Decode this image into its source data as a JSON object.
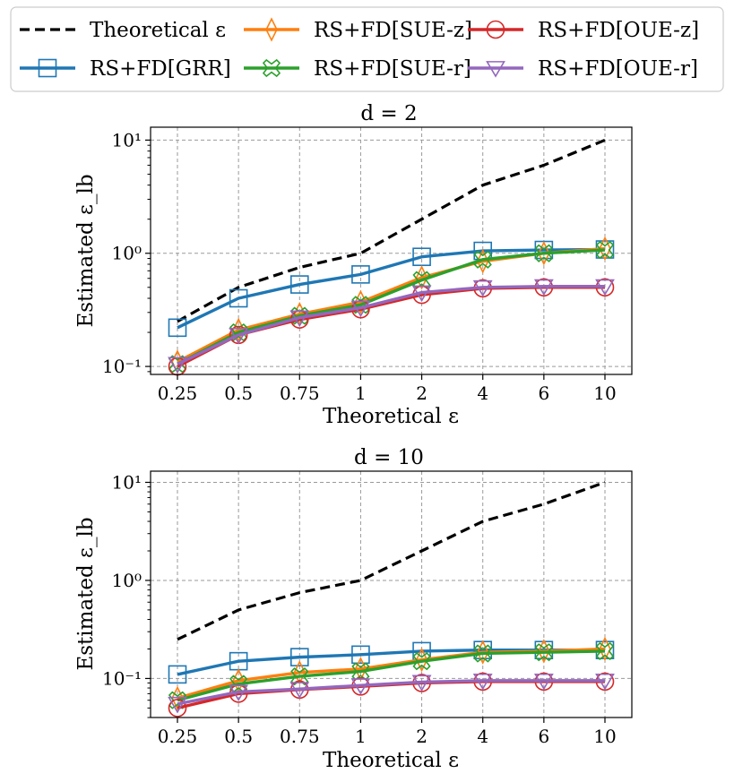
{
  "legend": {
    "entries": [
      {
        "label": "Theoretical ε",
        "color": "#000000",
        "marker": "none",
        "dashed": true
      },
      {
        "label": "RS+FD[SUE-z]",
        "color": "#ff7f0e",
        "marker": "diamond"
      },
      {
        "label": "RS+FD[OUE-z]",
        "color": "#d62728",
        "marker": "circle"
      },
      {
        "label": "RS+FD[GRR]",
        "color": "#1f77b4",
        "marker": "square"
      },
      {
        "label": "RS+FD[SUE-r]",
        "color": "#2ca02c",
        "marker": "x-cross"
      },
      {
        "label": "RS+FD[OUE-r]",
        "color": "#9467bd",
        "marker": "triangle-down"
      }
    ]
  },
  "chart_data": [
    {
      "type": "line",
      "title": "d = 2",
      "xlabel": "Theoretical ε",
      "ylabel": "Estimated ε_lb",
      "yscale": "log",
      "ylim": [
        0.085,
        13
      ],
      "yticks": [
        {
          "value": 0.1,
          "label": "10⁻¹"
        },
        {
          "value": 1,
          "label": "10⁰"
        },
        {
          "value": 10,
          "label": "10¹"
        }
      ],
      "grid": true,
      "categories": [
        "0.25",
        "0.5",
        "0.75",
        "1",
        "2",
        "4",
        "6",
        "10"
      ],
      "series": [
        {
          "name": "Theoretical ε",
          "color": "#000000",
          "marker": "none",
          "dashed": true,
          "values": [
            0.25,
            0.5,
            0.75,
            1,
            2,
            4,
            6,
            10
          ]
        },
        {
          "name": "RS+FD[GRR]",
          "color": "#1f77b4",
          "marker": "square",
          "values": [
            0.22,
            0.4,
            0.53,
            0.65,
            0.93,
            1.05,
            1.07,
            1.08
          ]
        },
        {
          "name": "RS+FD[SUE-z]",
          "color": "#ff7f0e",
          "marker": "diamond",
          "values": [
            0.11,
            0.21,
            0.29,
            0.37,
            0.61,
            0.85,
            1.0,
            1.1
          ]
        },
        {
          "name": "RS+FD[SUE-r]",
          "color": "#2ca02c",
          "marker": "x-cross",
          "values": [
            0.105,
            0.2,
            0.28,
            0.35,
            0.58,
            0.88,
            1.0,
            1.07
          ]
        },
        {
          "name": "RS+FD[OUE-z]",
          "color": "#d62728",
          "marker": "circle",
          "values": [
            0.1,
            0.19,
            0.26,
            0.32,
            0.43,
            0.49,
            0.5,
            0.5
          ]
        },
        {
          "name": "RS+FD[OUE-r]",
          "color": "#9467bd",
          "marker": "triangle-down",
          "values": [
            0.105,
            0.19,
            0.27,
            0.33,
            0.45,
            0.5,
            0.51,
            0.51
          ]
        }
      ]
    },
    {
      "type": "line",
      "title": "d = 10",
      "xlabel": "Theoretical ε",
      "ylabel": "Estimated ε_lb",
      "yscale": "log",
      "ylim": [
        0.04,
        13
      ],
      "yticks": [
        {
          "value": 0.1,
          "label": "10⁻¹"
        },
        {
          "value": 1,
          "label": "10⁰"
        },
        {
          "value": 10,
          "label": "10¹"
        }
      ],
      "grid": true,
      "categories": [
        "0.25",
        "0.5",
        "0.75",
        "1",
        "2",
        "4",
        "6",
        "10"
      ],
      "series": [
        {
          "name": "Theoretical ε",
          "color": "#000000",
          "marker": "none",
          "dashed": true,
          "values": [
            0.25,
            0.5,
            0.75,
            1,
            2,
            4,
            6,
            10
          ]
        },
        {
          "name": "RS+FD[GRR]",
          "color": "#1f77b4",
          "marker": "square",
          "values": [
            0.11,
            0.15,
            0.165,
            0.175,
            0.19,
            0.195,
            0.195,
            0.195
          ]
        },
        {
          "name": "RS+FD[SUE-z]",
          "color": "#ff7f0e",
          "marker": "diamond",
          "values": [
            0.063,
            0.095,
            0.115,
            0.125,
            0.155,
            0.185,
            0.19,
            0.2
          ]
        },
        {
          "name": "RS+FD[SUE-r]",
          "color": "#2ca02c",
          "marker": "x-cross",
          "values": [
            0.06,
            0.088,
            0.105,
            0.118,
            0.15,
            0.18,
            0.185,
            0.19
          ]
        },
        {
          "name": "RS+FD[OUE-z]",
          "color": "#d62728",
          "marker": "circle",
          "values": [
            0.05,
            0.07,
            0.077,
            0.083,
            0.09,
            0.093,
            0.093,
            0.093
          ]
        },
        {
          "name": "RS+FD[OUE-r]",
          "color": "#9467bd",
          "marker": "triangle-down",
          "values": [
            0.055,
            0.073,
            0.078,
            0.085,
            0.092,
            0.095,
            0.095,
            0.095
          ]
        }
      ]
    }
  ]
}
